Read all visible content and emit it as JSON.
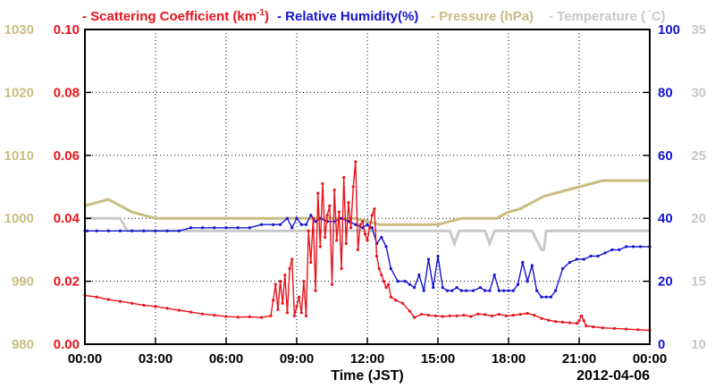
{
  "chart_data": {
    "type": "line",
    "date_label": "2012-04-06",
    "xlabel": "Time (JST)",
    "x_ticks": [
      "00:00",
      "03:00",
      "06:00",
      "09:00",
      "12:00",
      "15:00",
      "18:00",
      "21:00",
      "00:00"
    ],
    "x_range_hours": [
      0,
      24
    ],
    "colors": {
      "scatter": "#e8141c",
      "humidity": "#1414d2",
      "pressure": "#c8bd80",
      "temperature": "#c8c8c8"
    },
    "axes": {
      "pressure": {
        "side": "left-outer",
        "ylim": [
          980,
          1030
        ],
        "ticks": [
          "980",
          "990",
          "1000",
          "1010",
          "1020",
          "1030"
        ]
      },
      "scatter": {
        "side": "left-inner",
        "ylim": [
          0,
          0.1
        ],
        "ticks": [
          "0.00",
          "0.02",
          "0.04",
          "0.06",
          "0.08",
          "0.10"
        ]
      },
      "humidity": {
        "side": "right-inner",
        "ylim": [
          0,
          100
        ],
        "ticks": [
          "0",
          "20",
          "40",
          "60",
          "80",
          "100"
        ]
      },
      "temperature": {
        "side": "right-outer",
        "ylim": [
          10,
          35
        ],
        "ticks": [
          "10",
          "15",
          "20",
          "25",
          "30",
          "35"
        ]
      }
    },
    "legend": {
      "scatter_a": "- Scattering Coefficient (km",
      "scatter_sup": "-1",
      "scatter_b": ")",
      "humidity": "- Relative Humidity(%)",
      "pressure": "- Pressure (hPa)",
      "temperature": "- Temperature (",
      "temperature_unit": "C)"
    },
    "series": [
      {
        "key": "scatter",
        "name": "Scattering Coefficient (km-1)",
        "axis": "scatter",
        "markers": true,
        "x": [
          0,
          0.5,
          1,
          1.5,
          2,
          2.5,
          3,
          3.5,
          4,
          4.5,
          5,
          5.5,
          6,
          6.5,
          7,
          7.5,
          7.9,
          8,
          8.1,
          8.2,
          8.3,
          8.4,
          8.5,
          8.6,
          8.7,
          8.8,
          8.9,
          9,
          9.1,
          9.2,
          9.3,
          9.4,
          9.5,
          9.6,
          9.7,
          9.8,
          9.9,
          10,
          10.1,
          10.2,
          10.3,
          10.4,
          10.5,
          10.6,
          10.7,
          10.8,
          10.9,
          11,
          11.1,
          11.2,
          11.3,
          11.4,
          11.5,
          11.6,
          11.7,
          11.8,
          11.9,
          12,
          12.1,
          12.2,
          12.3,
          12.4,
          12.5,
          12.6,
          12.7,
          12.8,
          12.9,
          13,
          13.2,
          13.5,
          13.8,
          14,
          14.3,
          14.6,
          14.9,
          15.2,
          15.5,
          15.8,
          16.1,
          16.4,
          16.7,
          17,
          17.3,
          17.6,
          17.9,
          18.2,
          18.5,
          18.8,
          19.1,
          19.4,
          19.7,
          20,
          20.3,
          20.6,
          20.9,
          21,
          21.1,
          21.2,
          21.3,
          21.6,
          22,
          22.5,
          23,
          23.5,
          24
        ],
        "y": [
          0.0155,
          0.015,
          0.0142,
          0.0136,
          0.013,
          0.0124,
          0.012,
          0.0114,
          0.0108,
          0.0102,
          0.0096,
          0.0092,
          0.0088,
          0.0086,
          0.0087,
          0.0085,
          0.009,
          0.014,
          0.019,
          0.011,
          0.02,
          0.013,
          0.022,
          0.01,
          0.024,
          0.027,
          0.009,
          0.012,
          0.015,
          0.01,
          0.02,
          0.009,
          0.036,
          0.026,
          0.04,
          0.017,
          0.048,
          0.031,
          0.051,
          0.034,
          0.041,
          0.044,
          0.019,
          0.049,
          0.033,
          0.042,
          0.024,
          0.053,
          0.032,
          0.045,
          0.037,
          0.05,
          0.058,
          0.03,
          0.038,
          0.039,
          0.035,
          0.033,
          0.037,
          0.041,
          0.043,
          0.028,
          0.024,
          0.022,
          0.02,
          0.018,
          0.019,
          0.015,
          0.014,
          0.013,
          0.0105,
          0.0085,
          0.0095,
          0.0092,
          0.009,
          0.0088,
          0.009,
          0.009,
          0.0092,
          0.0088,
          0.0096,
          0.0094,
          0.009,
          0.0095,
          0.009,
          0.0092,
          0.0095,
          0.0098,
          0.0092,
          0.0082,
          0.0076,
          0.0072,
          0.007,
          0.0068,
          0.0066,
          0.0075,
          0.009,
          0.0075,
          0.0058,
          0.0055,
          0.0052,
          0.005,
          0.0048,
          0.0046,
          0.0044
        ]
      },
      {
        "key": "humidity",
        "name": "Relative Humidity(%)",
        "axis": "humidity",
        "markers": true,
        "x": [
          0,
          0.1,
          0.5,
          1,
          1.5,
          2,
          2.5,
          3,
          3.5,
          4,
          4.5,
          5,
          5.5,
          6,
          6.5,
          7,
          7.5,
          8,
          8.3,
          8.6,
          8.8,
          9,
          9.2,
          9.4,
          9.6,
          9.8,
          10,
          10.3,
          10.6,
          10.9,
          11.2,
          11.5,
          11.8,
          12,
          12.2,
          12.4,
          12.6,
          12.8,
          13,
          13.3,
          13.6,
          13.8,
          14,
          14.2,
          14.4,
          14.6,
          14.8,
          15,
          15.2,
          15.4,
          15.6,
          15.8,
          16,
          16.2,
          16.5,
          16.8,
          17,
          17.2,
          17.4,
          17.6,
          17.8,
          18,
          18.2,
          18.4,
          18.6,
          18.8,
          19,
          19.2,
          19.4,
          19.6,
          19.8,
          20,
          20.3,
          20.6,
          20.9,
          21.2,
          21.5,
          21.8,
          22.1,
          22.4,
          22.7,
          23,
          23.3,
          23.6,
          24
        ],
        "y": [
          36,
          36,
          36,
          36,
          36,
          36,
          36,
          36,
          36,
          36,
          37,
          37,
          37,
          37,
          37,
          37,
          38,
          38,
          38,
          40,
          37,
          40,
          38,
          38,
          41,
          39,
          40,
          39,
          39,
          40,
          39,
          38,
          37,
          38,
          37,
          32,
          34,
          31,
          24,
          20,
          20,
          19,
          18,
          22,
          17,
          27,
          18,
          28,
          18,
          17,
          17,
          18,
          17,
          17,
          17,
          18,
          17,
          17,
          22,
          17,
          17,
          17,
          17,
          19,
          26,
          20,
          25,
          17,
          15,
          15,
          15,
          17,
          24,
          26,
          27,
          27,
          28,
          28,
          29,
          30,
          30,
          31,
          31,
          31,
          31
        ]
      },
      {
        "key": "pressure",
        "name": "Pressure (hPa)",
        "axis": "pressure",
        "markers": false,
        "x": [
          0,
          0.5,
          1,
          1.5,
          2,
          2.5,
          3,
          3.5,
          4,
          4.5,
          5,
          5.5,
          6,
          6.5,
          7,
          7.5,
          8,
          8.5,
          9,
          9.5,
          10,
          10.5,
          11,
          11.5,
          12,
          12.5,
          13,
          13.5,
          14,
          14.5,
          15,
          15.5,
          16,
          16.5,
          17,
          17.5,
          18,
          18.5,
          19,
          19.5,
          20,
          20.5,
          21,
          21.5,
          22,
          22.5,
          23,
          23.5,
          24
        ],
        "y": [
          1002,
          1002.5,
          1003,
          1002,
          1001,
          1000.5,
          1000,
          1000,
          1000,
          1000,
          1000,
          1000,
          1000,
          1000,
          1000,
          1000,
          1000,
          1000,
          1000,
          1000,
          1000,
          1000,
          1000,
          1000,
          999.5,
          999,
          999,
          999,
          999,
          999,
          999,
          999.5,
          1000,
          1000,
          1000,
          1000,
          1001,
          1001.5,
          1002.5,
          1003.5,
          1004,
          1004.5,
          1005,
          1005.5,
          1006,
          1006,
          1006,
          1006,
          1006
        ]
      },
      {
        "key": "temperature",
        "name": "Temperature (C)",
        "axis": "temperature",
        "markers": false,
        "x": [
          0,
          0.5,
          1,
          1.5,
          1.8,
          2,
          3,
          4,
          5,
          6,
          7,
          8,
          9,
          10,
          10.5,
          11,
          11.5,
          12,
          12.3,
          12.6,
          12.8,
          13,
          13.5,
          14,
          14.5,
          15,
          15.5,
          15.7,
          15.9,
          16.5,
          17,
          17.2,
          17.4,
          18,
          19,
          19.4,
          19.5,
          19.6,
          20,
          21,
          22,
          23,
          24
        ],
        "y": [
          20,
          20,
          20,
          20,
          19,
          19,
          19,
          19,
          19,
          19,
          19,
          19,
          19,
          19,
          19,
          19,
          19,
          19,
          19,
          19,
          19,
          19,
          19,
          19,
          19,
          19,
          19,
          18,
          19,
          19,
          19,
          18,
          19,
          19,
          19,
          17.5,
          17.5,
          19,
          19,
          19,
          19,
          19,
          19
        ]
      }
    ]
  }
}
